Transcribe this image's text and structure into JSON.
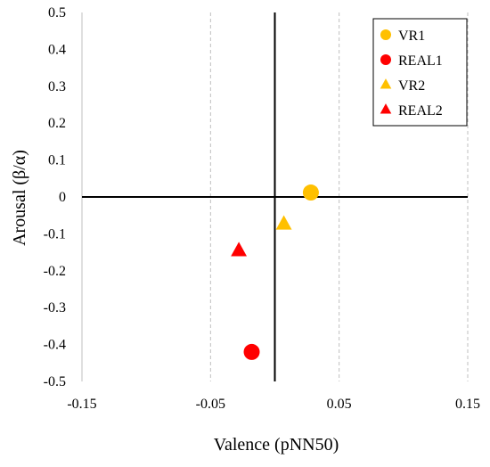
{
  "chart_data": {
    "type": "scatter",
    "title": "",
    "xlabel": "Valence (pNN50)",
    "ylabel": "Arousal (β/α)",
    "xlim": [
      -0.15,
      0.15
    ],
    "ylim": [
      -0.5,
      0.5
    ],
    "xticks": [
      -0.15,
      -0.05,
      0.05,
      0.15
    ],
    "xtick_labels": [
      "-0.15",
      "-0.05",
      "0.05",
      "0.15"
    ],
    "yticks": [
      0.5,
      0.4,
      0.3,
      0.2,
      0.1,
      0,
      -0.1,
      -0.2,
      -0.3,
      -0.4,
      -0.5
    ],
    "ytick_labels": [
      "0.5",
      "0.4",
      "0.3",
      "0.2",
      "0.1",
      "0",
      "-0.1",
      "-0.2",
      "-0.3",
      "-0.4",
      "-0.5"
    ],
    "grid": "vertical dashed",
    "legend_position": "top-right",
    "series": [
      {
        "name": "VR1",
        "marker": "circle",
        "color": "#FFC000",
        "points": [
          [
            0.028,
            0.012
          ]
        ]
      },
      {
        "name": "REAL1",
        "marker": "circle",
        "color": "#FF0000",
        "points": [
          [
            -0.018,
            -0.42
          ]
        ]
      },
      {
        "name": "VR2",
        "marker": "triangle",
        "color": "#FFC000",
        "points": [
          [
            0.007,
            -0.073
          ]
        ]
      },
      {
        "name": "REAL2",
        "marker": "triangle",
        "color": "#FF0000",
        "points": [
          [
            -0.028,
            -0.145
          ]
        ]
      }
    ]
  }
}
